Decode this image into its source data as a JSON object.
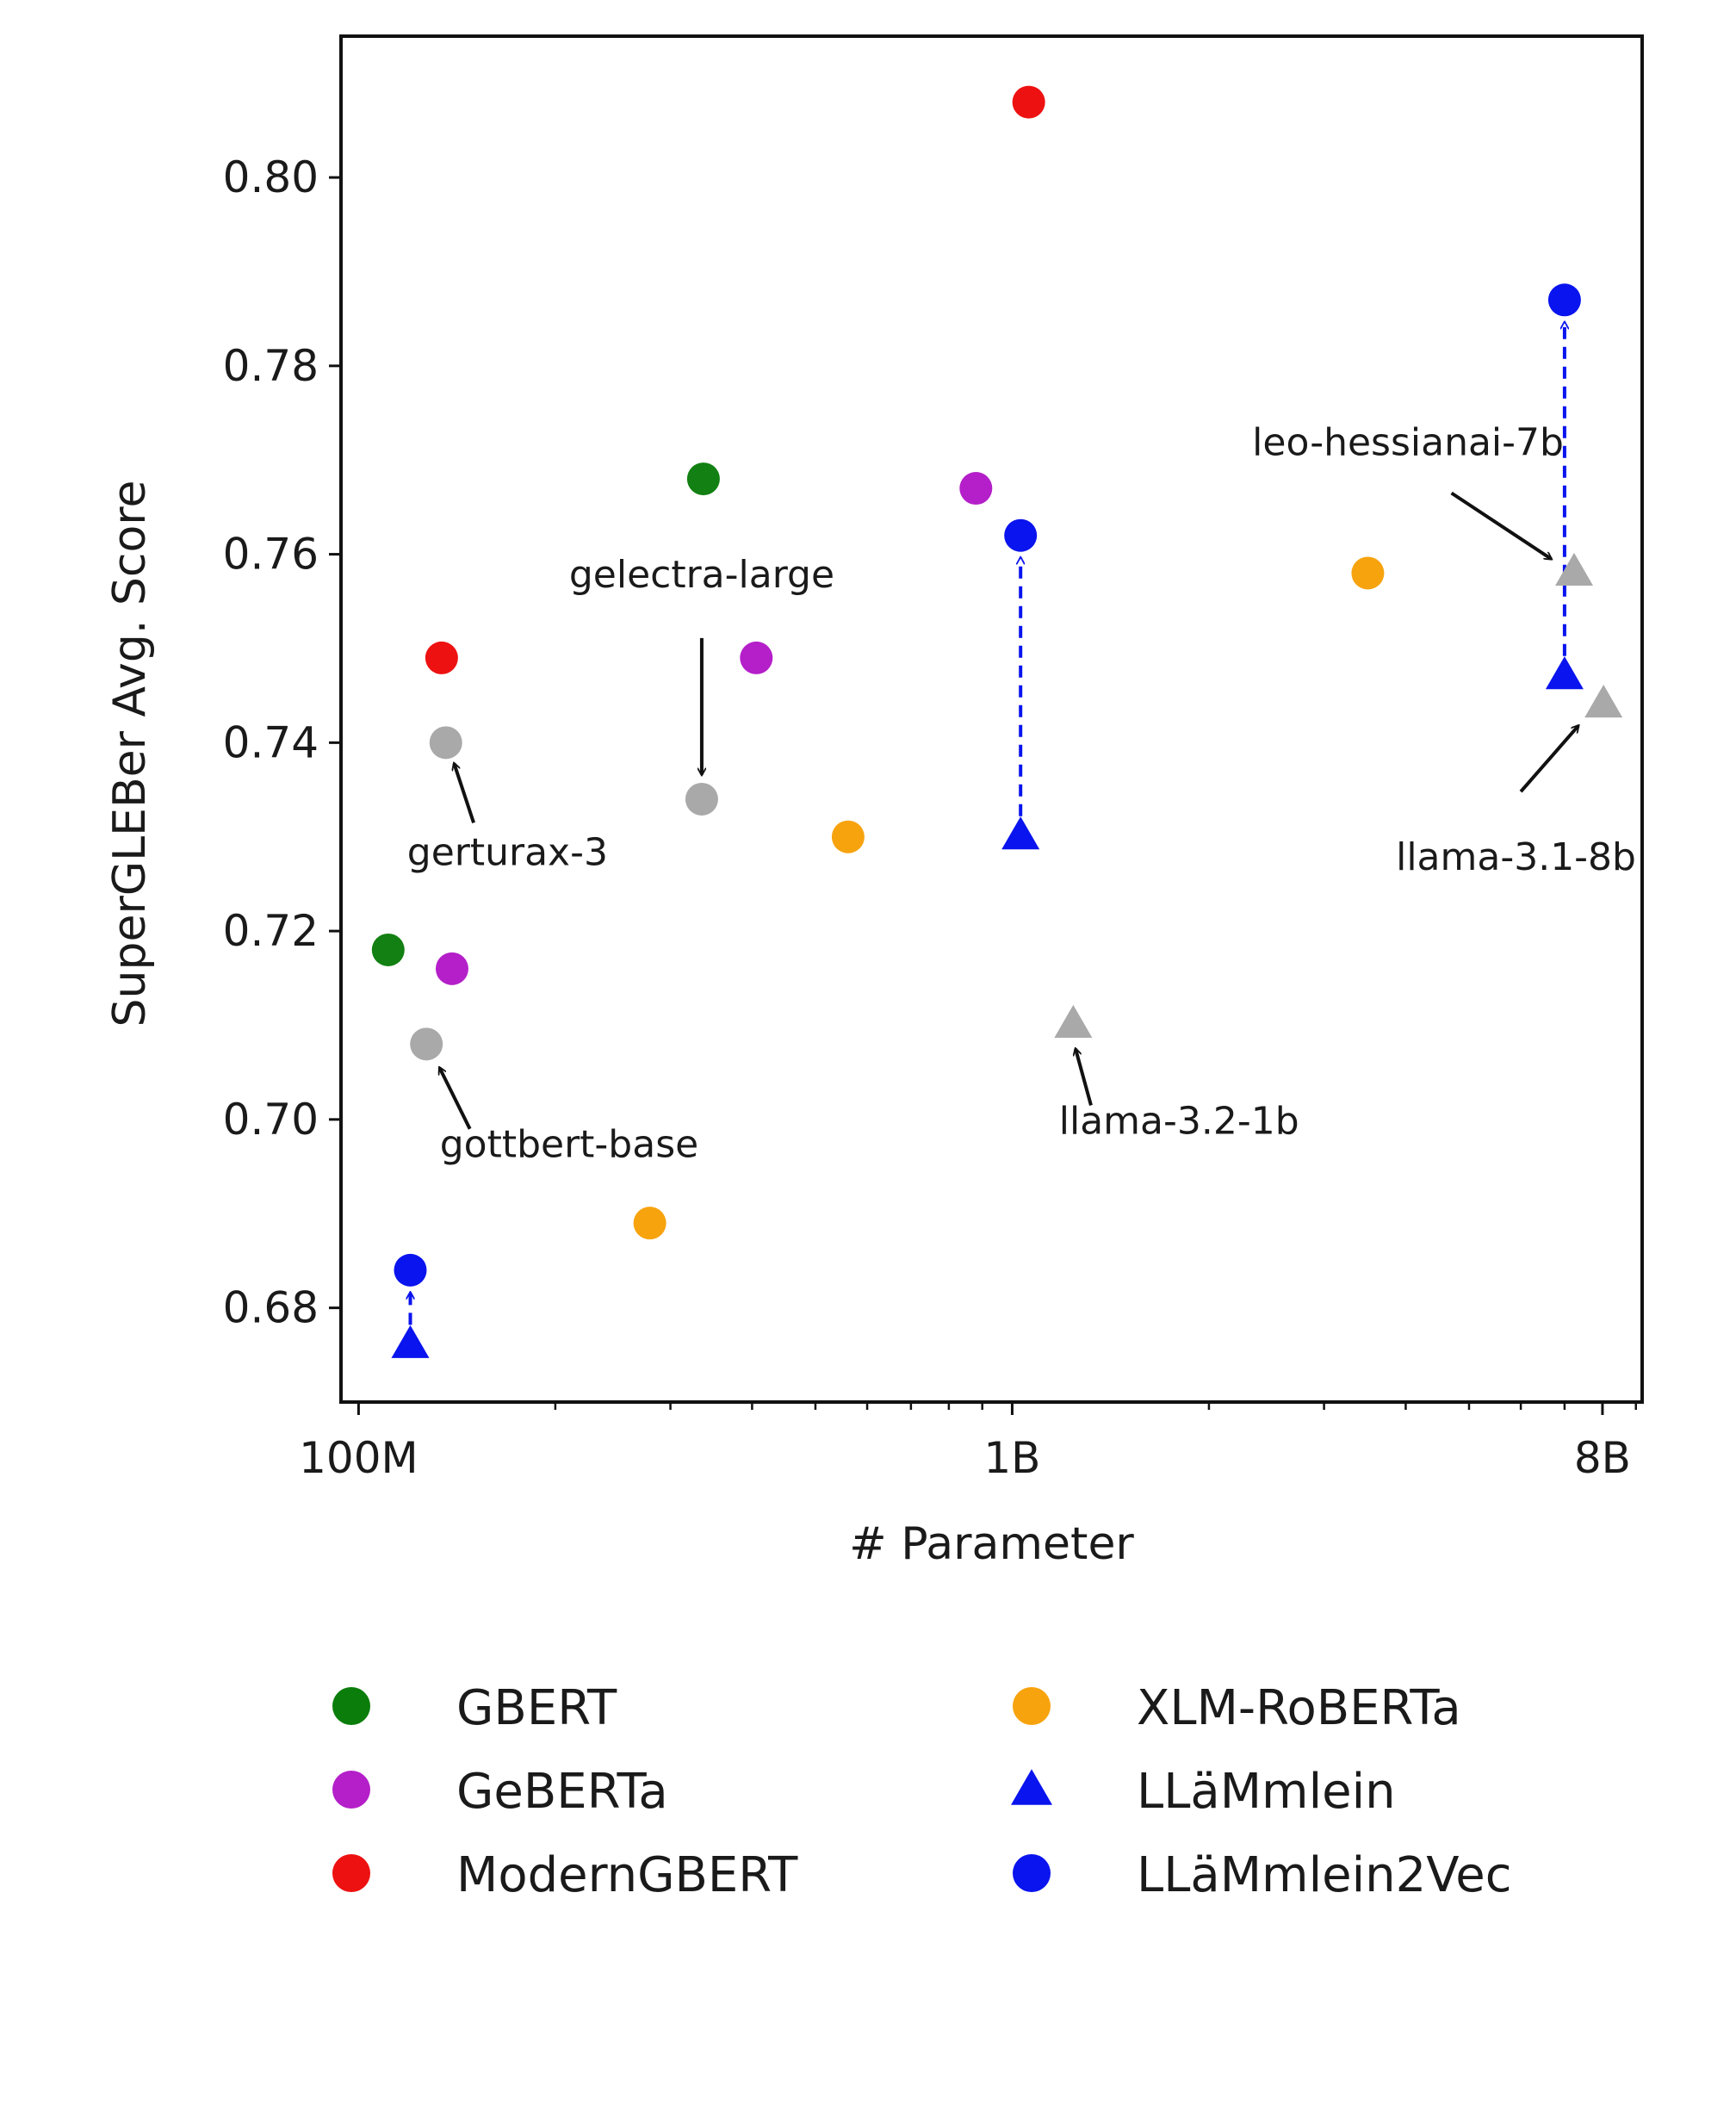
{
  "chart_data": {
    "type": "scatter",
    "xlabel": "# Parameter",
    "ylabel": "SuperGLEBer Avg. Score",
    "x_scale": "log",
    "xlim": [
      94000000,
      9200000000
    ],
    "ylim": [
      0.67,
      0.815
    ],
    "x_ticks": [
      {
        "value": 100000000,
        "label": "100M"
      },
      {
        "value": 1000000000,
        "label": "1B"
      },
      {
        "value": 8000000000,
        "label": "8B"
      }
    ],
    "y_ticks": [
      {
        "value": 0.68,
        "label": "0.68"
      },
      {
        "value": 0.7,
        "label": "0.70"
      },
      {
        "value": 0.72,
        "label": "0.72"
      },
      {
        "value": 0.74,
        "label": "0.74"
      },
      {
        "value": 0.76,
        "label": "0.76"
      },
      {
        "value": 0.78,
        "label": "0.78"
      },
      {
        "value": 0.8,
        "label": "0.80"
      }
    ],
    "grid": false,
    "legend_position": "bottom",
    "series": [
      {
        "name": "GBERT",
        "marker": "circle",
        "color": "#128012",
        "legend_color": "#0a7d0a",
        "points": [
          {
            "x": 111000000,
            "y": 0.718
          },
          {
            "x": 337000000,
            "y": 0.768
          }
        ]
      },
      {
        "name": "GeBERTa",
        "marker": "circle",
        "color": "#b41fc9",
        "points": [
          {
            "x": 139000000,
            "y": 0.716
          },
          {
            "x": 406000000,
            "y": 0.749
          },
          {
            "x": 880000000,
            "y": 0.767
          }
        ]
      },
      {
        "name": "ModernGBERT",
        "marker": "circle",
        "color": "#ee1111",
        "points": [
          {
            "x": 134000000,
            "y": 0.749
          },
          {
            "x": 1060000000,
            "y": 0.808
          }
        ]
      },
      {
        "name": "XLM-RoBERTa",
        "marker": "circle",
        "color": "#f7a30e",
        "points": [
          {
            "x": 279000000,
            "y": 0.689
          },
          {
            "x": 561000000,
            "y": 0.73
          },
          {
            "x": 3500000000,
            "y": 0.758
          }
        ]
      },
      {
        "name": "LLäMmlein",
        "marker": "triangle",
        "color": "#0a14ee",
        "points": [
          {
            "x": 120000000,
            "y": 0.676
          },
          {
            "x": 1030000000,
            "y": 0.73
          },
          {
            "x": 7000000000,
            "y": 0.747
          }
        ]
      },
      {
        "name": "LLäMmlein2Vec",
        "marker": "circle",
        "color": "#0a14ee",
        "points": [
          {
            "x": 120000000,
            "y": 0.684
          },
          {
            "x": 1030000000,
            "y": 0.762
          },
          {
            "x": 7000000000,
            "y": 0.787
          }
        ]
      }
    ],
    "other_models": {
      "color": "#a9a9a9",
      "points": [
        {
          "marker": "circle",
          "x": 127000000,
          "y": 0.708
        },
        {
          "marker": "circle",
          "x": 136000000,
          "y": 0.74
        },
        {
          "marker": "circle",
          "x": 335000000,
          "y": 0.734
        },
        {
          "marker": "triangle",
          "x": 1240000000,
          "y": 0.71
        },
        {
          "marker": "triangle",
          "x": 7240000000,
          "y": 0.758
        },
        {
          "marker": "triangle",
          "x": 8030000000,
          "y": 0.744
        }
      ]
    },
    "upgrade_arrows": [
      {
        "x": 120000000,
        "from": 0.676,
        "to": 0.684
      },
      {
        "x": 1030000000,
        "from": 0.73,
        "to": 0.762
      },
      {
        "x": 7000000000,
        "from": 0.747,
        "to": 0.787
      }
    ],
    "annotations": [
      {
        "text": "gottbert-base",
        "text_x": 210000000,
        "text_y": 0.696,
        "anchor": "middle",
        "arrow_from": [
          148000000,
          0.699
        ],
        "arrow_to": [
          133000000,
          0.7055
        ]
      },
      {
        "text": "gerturax-3",
        "text_x": 169000000,
        "text_y": 0.727,
        "anchor": "middle",
        "arrow_from": [
          150000000,
          0.7315
        ],
        "arrow_to": [
          140000000,
          0.7378
        ]
      },
      {
        "text": "gelectra-large",
        "text_x": 335000000,
        "text_y": 0.7565,
        "anchor": "middle",
        "arrow_from": [
          335000000,
          0.7511
        ],
        "arrow_to": [
          335000000,
          0.7366
        ]
      },
      {
        "text": "llama-3.2-1b",
        "text_x": 1800000000,
        "text_y": 0.6985,
        "anchor": "middle",
        "arrow_from": [
          1320000000,
          0.7015
        ],
        "arrow_to": [
          1250000000,
          0.7075
        ]
      },
      {
        "text": "leo-hessianai-7b",
        "text_x": 6980000000,
        "text_y": 0.7705,
        "anchor": "end",
        "arrow_from": [
          4700000000,
          0.7665
        ],
        "arrow_to": [
          6680000000,
          0.7595
        ]
      },
      {
        "text": "llama-3.1-8b",
        "text_x": 5900000000,
        "text_y": 0.7265,
        "anchor": "middle",
        "arrow_from": [
          6000000000,
          0.7348
        ],
        "arrow_to": [
          7350000000,
          0.7418
        ]
      }
    ]
  }
}
